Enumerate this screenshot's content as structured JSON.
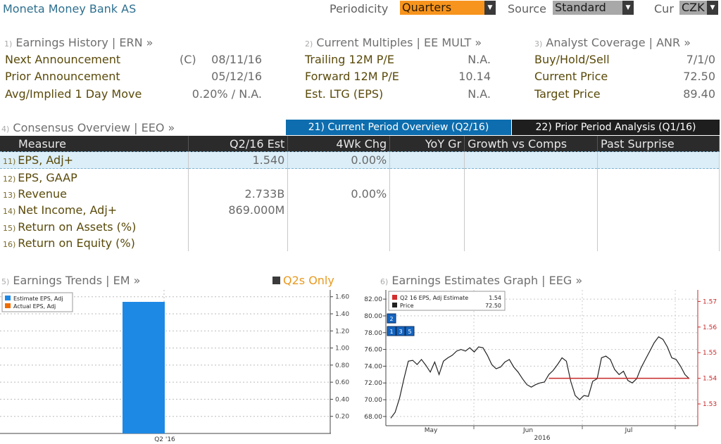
{
  "header": {
    "title": "Moneta Money Bank AS",
    "periodicity_label": "Periodicity",
    "periodicity_value": "Quarters",
    "source_label": "Source",
    "source_value": "Standard",
    "cur_label": "Cur",
    "cur_value": "CZK"
  },
  "sections": {
    "earnings_history": {
      "num": "1)",
      "title": "Earnings History | ERN »",
      "rows": [
        {
          "label": "Next Announcement",
          "prefix": "(C)",
          "value": "08/11/16"
        },
        {
          "label": "Prior Announcement",
          "value": "05/12/16"
        },
        {
          "label": "Avg/Implied 1 Day Move",
          "value": "0.20% / N.A."
        }
      ]
    },
    "current_multiples": {
      "num": "2)",
      "title": "Current Multiples | EE MULT »",
      "rows": [
        {
          "label": "Trailing 12M P/E",
          "value": "N.A."
        },
        {
          "label": "Forward 12M P/E",
          "value": "10.14"
        },
        {
          "label": "Est. LTG (EPS)",
          "value": "N.A."
        }
      ]
    },
    "analyst_coverage": {
      "num": "3)",
      "title": "Analyst Coverage | ANR »",
      "rows": [
        {
          "label": "Buy/Hold/Sell",
          "value": "7/1/0"
        },
        {
          "label": "Current Price",
          "value": "72.50"
        },
        {
          "label": "Target Price",
          "value": "89.40"
        }
      ]
    },
    "consensus_overview": {
      "num": "4)",
      "title": "Consensus Overview | EEO »"
    }
  },
  "tabs": [
    {
      "label": "21) Current Period Overview (Q2/16)",
      "active": true
    },
    {
      "label": "22) Prior Period Analysis (Q1/16)",
      "active": false
    }
  ],
  "table": {
    "headers": [
      "Measure",
      "Q2/16 Est",
      "4Wk Chg",
      "YoY Gr",
      "Growth vs Comps",
      "Past Surprise"
    ],
    "rows": [
      {
        "num": "11)",
        "measure": "EPS, Adj+",
        "est": "1.540",
        "chg": "0.00%"
      },
      {
        "num": "12)",
        "measure": "EPS, GAAP",
        "est": "",
        "chg": ""
      },
      {
        "num": "13)",
        "measure": "Revenue",
        "est": "2.733B",
        "chg": "0.00%"
      },
      {
        "num": "14)",
        "measure": "Net Income, Adj+",
        "est": "869.000M",
        "chg": ""
      },
      {
        "num": "15)",
        "measure": "Return on Assets (%)",
        "est": "",
        "chg": ""
      },
      {
        "num": "16)",
        "measure": "Return on Equity (%)",
        "est": "",
        "chg": ""
      }
    ]
  },
  "trends": {
    "num": "5)",
    "title": "Earnings Trends | EM »",
    "toggle_label": "Q2s Only",
    "legend": [
      {
        "label": "Estimate EPS, Adj",
        "color": "#1e88e5"
      },
      {
        "label": "Actual EPS, Adj",
        "color": "#ef6c00"
      }
    ]
  },
  "graph": {
    "num": "6)",
    "title": "Earnings Estimates Graph | EEG »",
    "legend": [
      {
        "label": "Q2 16 EPS, Adj Estimate",
        "value": "1.54",
        "color": "#d32f2f"
      },
      {
        "label": "Price",
        "value": "72.50",
        "color": "#222222"
      }
    ],
    "markers": [
      "2",
      "1",
      "3",
      "5"
    ],
    "year_label": "2016"
  },
  "chart_data": [
    {
      "type": "bar",
      "categories": [
        "Q2 '16"
      ],
      "series": [
        {
          "name": "Estimate EPS, Adj",
          "values": [
            1.54
          ],
          "color": "#1e88e5"
        },
        {
          "name": "Actual EPS, Adj",
          "values": [
            null
          ],
          "color": "#ef6c00"
        }
      ],
      "ylim": [
        0,
        1.68
      ],
      "yticks": [
        "0.20",
        "0.40",
        "0.60",
        "0.80",
        "1.00",
        "1.20",
        "1.40",
        "1.60"
      ],
      "ytick_values": [
        0.2,
        0.4,
        0.6,
        0.8,
        1.0,
        1.2,
        1.4,
        1.6
      ],
      "axis_side": "right"
    },
    {
      "type": "line",
      "x_labels": [
        "May",
        "Jun",
        "Jul"
      ],
      "series": [
        {
          "name": "Price",
          "axis": "left",
          "color": "#222222",
          "values": [
            67.8,
            68.5,
            70.2,
            72.5,
            74.6,
            74.7,
            74.2,
            74.8,
            74.1,
            73.3,
            74.5,
            73.0,
            74.6,
            75.0,
            75.3,
            75.8,
            76.0,
            75.8,
            76.2,
            75.7,
            76.3,
            76.2,
            75.3,
            74.2,
            73.7,
            73.9,
            74.5,
            74.8,
            73.9,
            73.3,
            72.5,
            71.8,
            71.5,
            71.8,
            72.0,
            72.1,
            73.0,
            73.5,
            74.2,
            75.0,
            74.6,
            72.2,
            70.5,
            70.0,
            70.5,
            70.4,
            72.2,
            72.5,
            75.0,
            75.2,
            74.8,
            73.6,
            73.0,
            73.4,
            72.3,
            72.0,
            72.5,
            73.8,
            74.8,
            75.8,
            76.8,
            77.5,
            77.2,
            76.3,
            75.0,
            74.8,
            74.0,
            73.0,
            72.5
          ]
        },
        {
          "name": "Q2 16 EPS, Adj Estimate",
          "axis": "right",
          "color": "#c62828",
          "start_index": 36,
          "values": [
            1.54
          ]
        }
      ],
      "left_ticks": [
        "68.00",
        "70.00",
        "72.00",
        "74.00",
        "76.00",
        "78.00",
        "80.00",
        "82.00"
      ],
      "left_tick_values": [
        68,
        70,
        72,
        74,
        76,
        78,
        80,
        82
      ],
      "left_ylim": [
        66.9,
        83.1
      ],
      "right_ticks": [
        "1.53",
        "1.54",
        "1.55",
        "1.56",
        "1.57"
      ],
      "right_tick_values": [
        1.53,
        1.54,
        1.55,
        1.56,
        1.57
      ],
      "right_ylim": [
        1.5215,
        1.5745
      ]
    }
  ]
}
